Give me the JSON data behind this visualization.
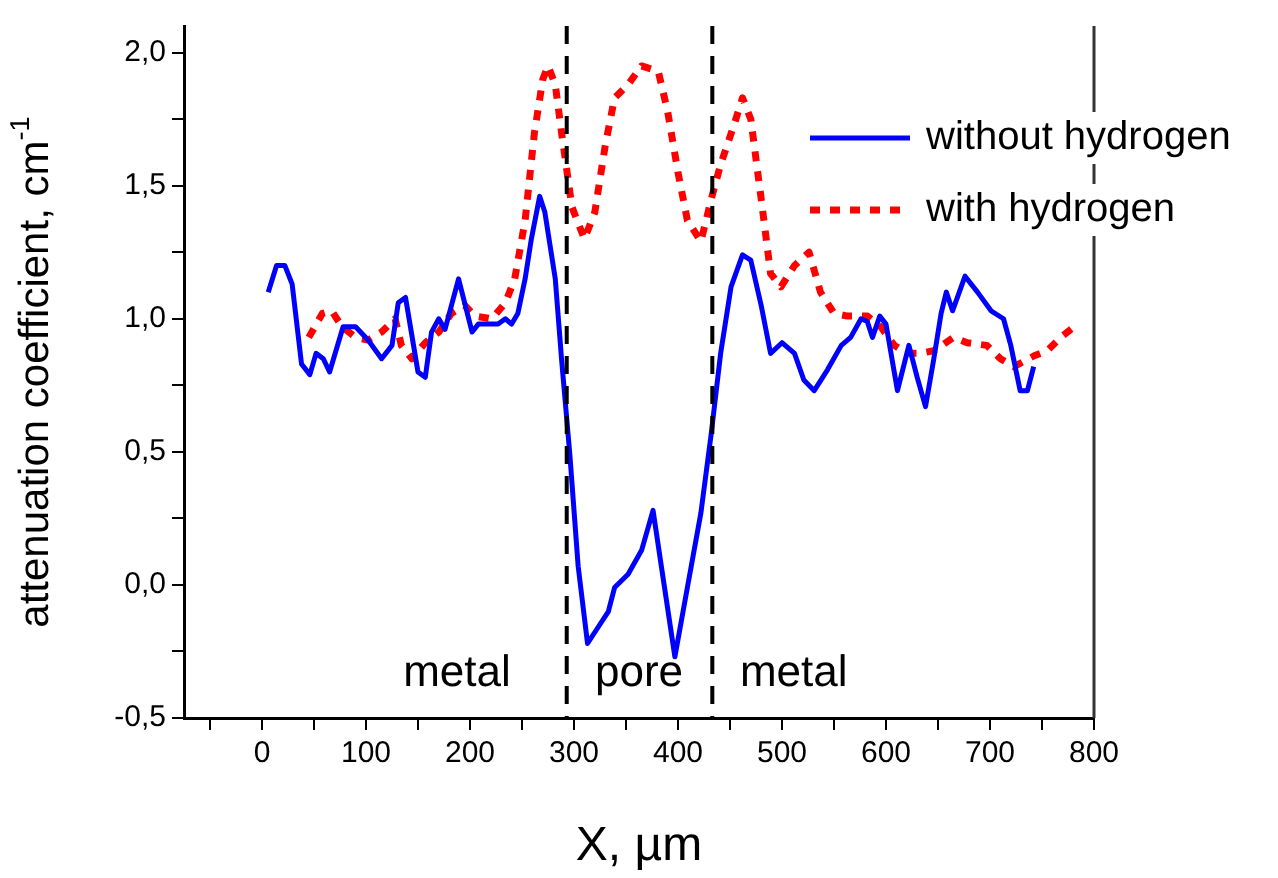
{
  "chart_data": {
    "type": "line",
    "xlabel": "X, µm",
    "ylabel": "attenuation coefficient, cm$^{-1}$",
    "xlim": [
      -75,
      800
    ],
    "ylim": [
      -0.5,
      2.1
    ],
    "xticks": [
      {
        "value": -50,
        "label": null
      },
      0,
      {
        "value": 50,
        "label": null
      },
      100,
      {
        "value": 150,
        "label": null
      },
      200,
      {
        "value": 250,
        "label": null
      },
      300,
      {
        "value": 350,
        "label": null
      },
      400,
      {
        "value": 450,
        "label": null
      },
      500,
      {
        "value": 550,
        "label": null
      },
      600,
      {
        "value": 650,
        "label": null
      },
      700,
      {
        "value": 750,
        "label": null
      },
      800
    ],
    "yticks": [
      {
        "value": -0.5,
        "label": "-0,5"
      },
      {
        "value": -0.25,
        "label": null
      },
      {
        "value": 0,
        "label": "0,0"
      },
      {
        "value": 0.25,
        "label": null
      },
      {
        "value": 0.5,
        "label": "0,5"
      },
      {
        "value": 0.75,
        "label": null
      },
      {
        "value": 1,
        "label": "1,0"
      },
      {
        "value": 1.25,
        "label": null
      },
      {
        "value": 1.5,
        "label": "1,5"
      },
      {
        "value": 1.75,
        "label": null
      },
      {
        "value": 2,
        "label": "2,0"
      }
    ],
    "grid": false,
    "legend": "top right",
    "marker": "none",
    "series": [
      {
        "name": "without hydrogen",
        "color": "#0000ff",
        "line_style": "solid",
        "x": [
          6,
          14,
          22,
          29,
          38,
          46,
          52,
          59,
          65,
          78,
          90,
          102,
          115,
          125,
          131,
          138,
          150,
          157,
          163,
          170,
          176,
          189,
          202,
          208,
          227,
          234,
          240,
          246,
          253,
          259,
          267,
          272,
          282,
          288,
          296,
          304,
          313,
          323,
          333,
          339,
          352,
          365,
          376,
          384,
          397,
          409,
          422,
          432,
          441,
          451,
          462,
          470,
          480,
          489,
          500,
          512,
          521,
          531,
          544,
          557,
          566,
          576,
          582,
          587,
          594,
          600,
          611,
          622,
          630,
          638,
          646,
          653,
          658,
          664,
          676,
          688,
          701,
          713,
          720,
          729,
          736,
          742
        ],
        "values": [
          1.1,
          1.2,
          1.2,
          1.13,
          0.83,
          0.79,
          0.87,
          0.85,
          0.8,
          0.97,
          0.97,
          0.92,
          0.85,
          0.9,
          1.06,
          1.08,
          0.8,
          0.78,
          0.95,
          1.0,
          0.96,
          1.15,
          0.95,
          0.98,
          0.98,
          1.0,
          0.98,
          1.02,
          1.15,
          1.3,
          1.46,
          1.4,
          1.15,
          0.85,
          0.49,
          0.07,
          -0.22,
          -0.16,
          -0.1,
          -0.01,
          0.04,
          0.13,
          0.28,
          0.07,
          -0.27,
          -0.01,
          0.27,
          0.57,
          0.87,
          1.12,
          1.24,
          1.22,
          1.05,
          0.87,
          0.91,
          0.87,
          0.77,
          0.73,
          0.81,
          0.9,
          0.93,
          1.0,
          0.99,
          0.93,
          1.01,
          0.98,
          0.73,
          0.9,
          0.78,
          0.67,
          0.85,
          1.02,
          1.1,
          1.03,
          1.16,
          1.1,
          1.03,
          1.0,
          0.9,
          0.73,
          0.73,
          0.82
        ]
      },
      {
        "name": "with hydrogen",
        "color": "#ff0000",
        "line_style": "dotted",
        "x": [
          45,
          58,
          67,
          77,
          90,
          102,
          115,
          128,
          134,
          144,
          157,
          170,
          182,
          195,
          205,
          221,
          234,
          243,
          253,
          262,
          270,
          275,
          282,
          288,
          298,
          310,
          320,
          330,
          339,
          352,
          365,
          381,
          390,
          400,
          409,
          422,
          432,
          441,
          454,
          462,
          470,
          480,
          489,
          499,
          512,
          526,
          537,
          550,
          563,
          582,
          595,
          608,
          620,
          633,
          646,
          665,
          678,
          697,
          710,
          723,
          742,
          755,
          768,
          781
        ],
        "values": [
          0.93,
          1.02,
          1.03,
          0.97,
          0.93,
          0.92,
          0.95,
          1.0,
          0.9,
          0.85,
          0.91,
          0.95,
          1.02,
          1.05,
          1.01,
          1.0,
          1.06,
          1.15,
          1.37,
          1.7,
          1.9,
          1.95,
          1.88,
          1.7,
          1.42,
          1.3,
          1.4,
          1.65,
          1.83,
          1.88,
          1.95,
          1.93,
          1.78,
          1.55,
          1.37,
          1.29,
          1.45,
          1.58,
          1.73,
          1.83,
          1.75,
          1.45,
          1.17,
          1.12,
          1.2,
          1.25,
          1.1,
          1.02,
          1.01,
          1.01,
          0.97,
          0.9,
          0.87,
          0.87,
          0.88,
          0.93,
          0.91,
          0.9,
          0.85,
          0.82,
          0.86,
          0.88,
          0.93,
          0.97
        ]
      }
    ],
    "ref_lines": [
      {
        "axis": "x",
        "value": 293,
        "color": "#000000",
        "line_style": "dashed"
      },
      {
        "axis": "x",
        "value": 433,
        "color": "#000000",
        "line_style": "dashed"
      }
    ],
    "annotations": [
      "metal",
      "pore",
      "metal"
    ]
  }
}
